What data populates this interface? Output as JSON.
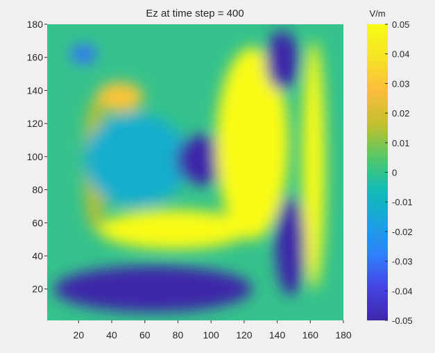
{
  "chart_data": {
    "type": "heatmap",
    "title": "Ez at time step = 400",
    "xlabel": "",
    "ylabel": "",
    "xlim": [
      1,
      180
    ],
    "ylim": [
      1,
      180
    ],
    "x_ticks": [
      20,
      40,
      60,
      80,
      100,
      120,
      140,
      160,
      180
    ],
    "y_ticks": [
      20,
      40,
      60,
      80,
      100,
      120,
      140,
      160,
      180
    ],
    "colorbar": {
      "label": "V/m",
      "limits": [
        -0.05,
        0.05
      ],
      "ticks": [
        "0.05",
        "0.04",
        "0.03",
        "0.02",
        "0.01",
        "0",
        "-0.01",
        "-0.02",
        "-0.03",
        "-0.04",
        "-0.05"
      ],
      "tick_values": [
        0.05,
        0.04,
        0.03,
        0.02,
        0.01,
        0,
        -0.01,
        -0.02,
        -0.03,
        -0.04,
        -0.05
      ]
    },
    "colormap": "parula",
    "colormap_stops": [
      "#3e26a8",
      "#4543e3",
      "#2f80fb",
      "#1aa4de",
      "#11bcb5",
      "#5bc863",
      "#c6bf2c",
      "#fcbd3c",
      "#f5e425",
      "#f9fb14"
    ],
    "background_value": 0,
    "features": [
      {
        "name": "upper-left-trough",
        "x": 23,
        "y": 162,
        "rx": 8,
        "ry": 6,
        "value": -0.03
      },
      {
        "name": "upper-left-peak",
        "x": 45,
        "y": 136,
        "rx": 14,
        "ry": 9,
        "value": 0.03
      },
      {
        "name": "left-arc-peak",
        "x": 30,
        "y": 95,
        "rx": 7,
        "ry": 40,
        "value": 0.015
      },
      {
        "name": "left-basin-trough",
        "x": 55,
        "y": 98,
        "rx": 32,
        "ry": 28,
        "value": -0.012
      },
      {
        "name": "center-trough",
        "x": 95,
        "y": 98,
        "rx": 16,
        "ry": 15,
        "value": -0.07
      },
      {
        "name": "right-peak",
        "x": 125,
        "y": 108,
        "rx": 22,
        "ry": 58,
        "value": 0.08
      },
      {
        "name": "right-edge-peak",
        "x": 162,
        "y": 95,
        "rx": 7,
        "ry": 75,
        "value": 0.07
      },
      {
        "name": "top-right-trough",
        "x": 143,
        "y": 158,
        "rx": 10,
        "ry": 18,
        "value": -0.07
      },
      {
        "name": "right-middle-trough",
        "x": 148,
        "y": 46,
        "rx": 9,
        "ry": 30,
        "value": -0.07
      },
      {
        "name": "lower-band-peak",
        "x": 78,
        "y": 56,
        "rx": 46,
        "ry": 12,
        "value": 0.06
      },
      {
        "name": "lower-trough",
        "x": 65,
        "y": 20,
        "rx": 60,
        "ry": 14,
        "value": -0.07
      }
    ]
  }
}
